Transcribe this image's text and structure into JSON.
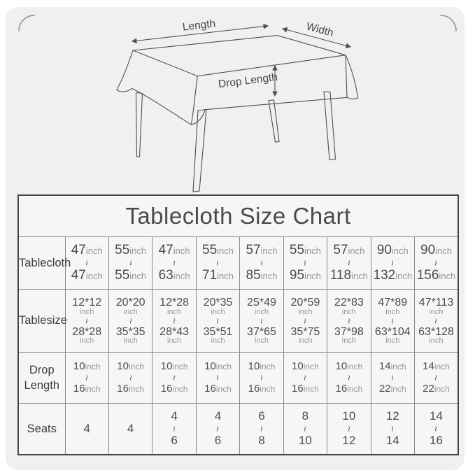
{
  "colors": {
    "page_bg": "#ffffff",
    "card_bg": "#f0f0f2",
    "table_bg": "#f6f6f8",
    "outer_border": "#454547",
    "grid_line": "#8a8a8e",
    "title_text": "#4b4b4d",
    "number_text": "#4c4c4e",
    "unit_text": "#96969a",
    "diagram_stroke": "#4f4f52",
    "corner_arc": "#909094"
  },
  "diagram": {
    "length_label": "Length",
    "width_label": "Width",
    "drop_label": "Drop Length"
  },
  "table": {
    "title": "Tablecloth Size Chart",
    "separator": "~",
    "unit": "inch",
    "rows": [
      {
        "label": "Tablecloth",
        "style": "inline-unit",
        "cells": [
          {
            "from": "47",
            "to": "47"
          },
          {
            "from": "55",
            "to": "55"
          },
          {
            "from": "47",
            "to": "63"
          },
          {
            "from": "55",
            "to": "71"
          },
          {
            "from": "57",
            "to": "85"
          },
          {
            "from": "55",
            "to": "95"
          },
          {
            "from": "57",
            "to": "118"
          },
          {
            "from": "90",
            "to": "132"
          },
          {
            "from": "90",
            "to": "156"
          }
        ]
      },
      {
        "label": "Tablesize",
        "style": "stacked-unit",
        "cells": [
          {
            "from": "12*12",
            "to": "28*28"
          },
          {
            "from": "20*20",
            "to": "35*35"
          },
          {
            "from": "12*28",
            "to": "28*43"
          },
          {
            "from": "20*35",
            "to": "35*51"
          },
          {
            "from": "25*49",
            "to": "37*65"
          },
          {
            "from": "20*59",
            "to": "35*75"
          },
          {
            "from": "22*83",
            "to": "37*98"
          },
          {
            "from": "47*89",
            "to": "63*104"
          },
          {
            "from": "47*113",
            "to": "63*128"
          }
        ]
      },
      {
        "label": "Drop Length",
        "style": "inline-unit",
        "cells": [
          {
            "from": "10",
            "to": "16"
          },
          {
            "from": "10",
            "to": "16"
          },
          {
            "from": "10",
            "to": "16"
          },
          {
            "from": "10",
            "to": "16"
          },
          {
            "from": "10",
            "to": "16"
          },
          {
            "from": "10",
            "to": "16"
          },
          {
            "from": "10",
            "to": "16"
          },
          {
            "from": "14",
            "to": "22"
          },
          {
            "from": "14",
            "to": "22"
          }
        ]
      },
      {
        "label": "Seats",
        "style": "plain",
        "cells": [
          {
            "from": "4",
            "to": null
          },
          {
            "from": "4",
            "to": null
          },
          {
            "from": "4",
            "to": "6"
          },
          {
            "from": "4",
            "to": "6"
          },
          {
            "from": "6",
            "to": "8"
          },
          {
            "from": "8",
            "to": "10"
          },
          {
            "from": "10",
            "to": "12"
          },
          {
            "from": "12",
            "to": "14"
          },
          {
            "from": "14",
            "to": "16"
          }
        ]
      }
    ]
  }
}
